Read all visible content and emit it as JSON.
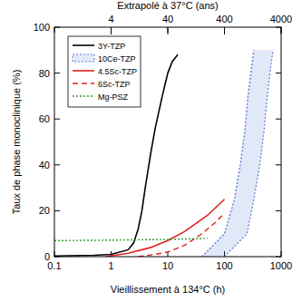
{
  "chart_data": {
    "type": "line",
    "xlabel": "Vieillissement à 134°C (h)",
    "ylabel": "Taux de phase monoclinique (%)",
    "x2label": "Extrapolé à 37°C (ans)",
    "log": "x",
    "xlim": [
      0.1,
      1000
    ],
    "xticks": [
      0.1,
      1,
      10,
      100,
      1000
    ],
    "x2lim": [
      0.4,
      4000
    ],
    "x2ticks": [
      4,
      40,
      400,
      4000
    ],
    "ylim": [
      0,
      100
    ],
    "yticks": [
      0,
      20,
      40,
      60,
      80,
      100
    ],
    "grid": false,
    "legend": "top-left",
    "series": [
      {
        "name": "3Y-TZP",
        "color": "#000000",
        "line_style": "solid",
        "x": [
          0.1,
          0.5,
          1,
          2,
          2.5,
          3,
          3.5,
          4,
          5,
          6,
          8,
          10,
          12,
          15
        ],
        "values": [
          0.3,
          0.6,
          1,
          3,
          6,
          12,
          20,
          30,
          45,
          56,
          70,
          80,
          85,
          88
        ]
      },
      {
        "name": "10Ce-TZP",
        "color": "#5b7fd0",
        "line_style": "dotted",
        "x": [
          40,
          100,
          150,
          190,
          230,
          260,
          300,
          330
        ],
        "x_max": [
          100,
          250,
          330,
          420,
          500,
          570,
          650,
          720
        ],
        "values": [
          0,
          10,
          25,
          40,
          55,
          70,
          82,
          90
        ]
      },
      {
        "name": "4.5Sc-TZP",
        "color": "#e0201b",
        "line_style": "solid",
        "x": [
          0.8,
          2,
          5,
          10,
          20,
          50,
          100
        ],
        "values": [
          0,
          1.5,
          4,
          7,
          11,
          18,
          25
        ]
      },
      {
        "name": "6Sc-TZP",
        "color": "#e0201b",
        "line_style": "dashed",
        "x": [
          3,
          6,
          10,
          20,
          40,
          70,
          100
        ],
        "values": [
          0,
          1,
          2,
          5,
          10,
          15,
          19
        ]
      },
      {
        "name": "Mg-PSZ",
        "color": "#2f9e2f",
        "line_style": "dotted",
        "x": [
          0.1,
          1,
          10,
          50
        ],
        "values": [
          7,
          7.2,
          7.5,
          8
        ]
      }
    ]
  }
}
